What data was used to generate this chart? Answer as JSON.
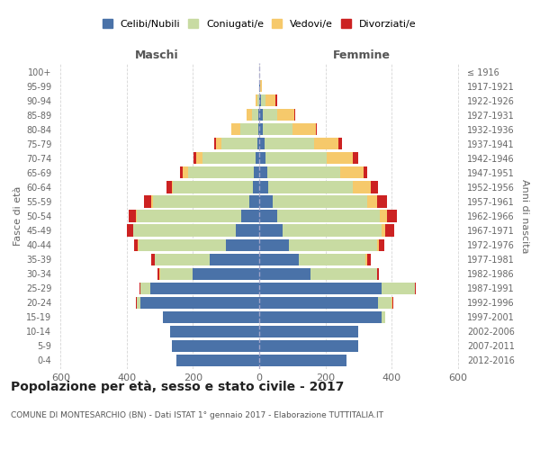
{
  "age_groups": [
    "0-4",
    "5-9",
    "10-14",
    "15-19",
    "20-24",
    "25-29",
    "30-34",
    "35-39",
    "40-44",
    "45-49",
    "50-54",
    "55-59",
    "60-64",
    "65-69",
    "70-74",
    "75-79",
    "80-84",
    "85-89",
    "90-94",
    "95-99",
    "100+"
  ],
  "birth_years": [
    "2012-2016",
    "2007-2011",
    "2002-2006",
    "1997-2001",
    "1992-1996",
    "1987-1991",
    "1982-1986",
    "1977-1981",
    "1972-1976",
    "1967-1971",
    "1962-1966",
    "1957-1961",
    "1952-1956",
    "1947-1951",
    "1942-1946",
    "1937-1941",
    "1932-1936",
    "1927-1931",
    "1922-1926",
    "1917-1921",
    "≤ 1916"
  ],
  "male_celibe": [
    250,
    265,
    270,
    290,
    360,
    330,
    200,
    150,
    100,
    70,
    55,
    30,
    20,
    15,
    10,
    5,
    3,
    2,
    0,
    0,
    0
  ],
  "male_coniugato": [
    0,
    0,
    0,
    0,
    10,
    30,
    100,
    165,
    265,
    310,
    315,
    290,
    240,
    200,
    160,
    110,
    55,
    20,
    5,
    0,
    0
  ],
  "male_vedovo": [
    0,
    0,
    0,
    0,
    1,
    0,
    1,
    1,
    2,
    2,
    3,
    5,
    5,
    15,
    20,
    15,
    25,
    15,
    5,
    0,
    0
  ],
  "male_divorziato": [
    0,
    0,
    0,
    0,
    2,
    2,
    5,
    10,
    12,
    18,
    20,
    22,
    15,
    8,
    8,
    5,
    2,
    2,
    0,
    0,
    0
  ],
  "fem_nubile": [
    265,
    300,
    300,
    370,
    360,
    370,
    155,
    120,
    90,
    70,
    55,
    40,
    28,
    25,
    18,
    15,
    10,
    10,
    5,
    2,
    1
  ],
  "fem_coniugata": [
    0,
    0,
    0,
    10,
    40,
    100,
    200,
    200,
    265,
    300,
    310,
    285,
    255,
    220,
    185,
    150,
    90,
    45,
    15,
    2,
    0
  ],
  "fem_vedova": [
    0,
    0,
    0,
    0,
    2,
    1,
    2,
    5,
    8,
    12,
    20,
    30,
    55,
    70,
    80,
    75,
    70,
    50,
    30,
    5,
    0
  ],
  "fem_divorziata": [
    0,
    0,
    0,
    0,
    2,
    2,
    5,
    12,
    15,
    25,
    30,
    32,
    20,
    12,
    15,
    10,
    5,
    3,
    5,
    0,
    0
  ],
  "color_celibe": "#4a72a8",
  "color_coniugato": "#c8dba2",
  "color_vedovo": "#f6c96b",
  "color_divorziato": "#cc2222",
  "title": "Popolazione per età, sesso e stato civile - 2017",
  "subtitle": "COMUNE DI MONTESARCHIO (BN) - Dati ISTAT 1° gennaio 2017 - Elaborazione TUTTITALIA.IT",
  "label_maschi": "Maschi",
  "label_femmine": "Femmine",
  "label_fasce": "Fasce di età",
  "label_anni": "Anni di nascita",
  "legend_labels": [
    "Celibi/Nubili",
    "Coniugati/e",
    "Vedovi/e",
    "Divorziati/e"
  ],
  "xlim": 620,
  "bg": "#ffffff",
  "grid_color": "#cccccc"
}
